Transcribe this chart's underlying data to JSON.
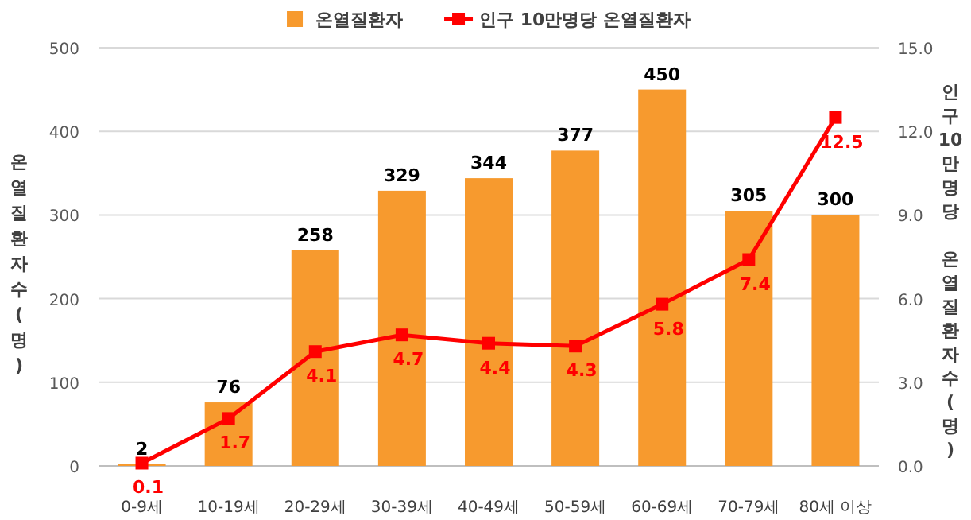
{
  "chart_data": {
    "type": "bar",
    "categories": [
      "0-9세",
      "10-19세",
      "20-29세",
      "30-39세",
      "40-49세",
      "50-59세",
      "60-69세",
      "70-79세",
      "80세 이상"
    ],
    "series": [
      {
        "name": "온열질환자",
        "color": "#f79a2e",
        "values": [
          2,
          76,
          258,
          329,
          344,
          377,
          450,
          305,
          300
        ]
      },
      {
        "name": "인구 10만명당 온열질환자",
        "type": "line",
        "axis": "y2",
        "color": "#ff0000",
        "values": [
          0.1,
          1.7,
          4.1,
          4.7,
          4.4,
          4.3,
          5.8,
          7.4,
          12.5
        ]
      }
    ],
    "ylabel": "온열질환자수(명)",
    "y2label": "인구10만명당 온열질환자수(명)",
    "ylim": [
      0,
      500
    ],
    "yticks": [
      0,
      100,
      200,
      300,
      400,
      500
    ],
    "y2lim": [
      0,
      15
    ],
    "y2ticks": [
      {
        "value": 0,
        "label": "0.0"
      },
      {
        "value": 3,
        "label": "3.0"
      },
      {
        "value": 6,
        "label": "6.0"
      },
      {
        "value": 9,
        "label": "9.0"
      },
      {
        "value": 12,
        "label": "12.0"
      },
      {
        "value": 15,
        "label": "15.0"
      }
    ],
    "grid": "y",
    "legend": "top",
    "marker": "square",
    "data_labels": true
  }
}
